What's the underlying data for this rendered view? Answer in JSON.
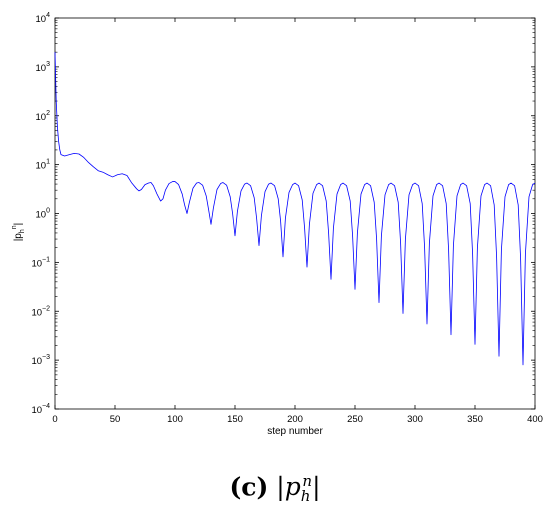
{
  "chart_data": {
    "type": "line",
    "title": "",
    "xlabel": "step  number",
    "ylabel_base": "|p",
    "ylabel_sub": "h",
    "ylabel_sup": "n",
    "ylabel_close": "|",
    "xlim": [
      0,
      400
    ],
    "ylim": [
      0.0001,
      10000
    ],
    "yscale": "log",
    "grid": false,
    "line_color": "#0000ff",
    "x_ticks": [
      0,
      50,
      100,
      150,
      200,
      250,
      300,
      350,
      400
    ],
    "y_ticks": [
      {
        "value": 10000,
        "mantissa": "10",
        "exp": "4"
      },
      {
        "value": 1000,
        "mantissa": "10",
        "exp": "3"
      },
      {
        "value": 100,
        "mantissa": "10",
        "exp": "2"
      },
      {
        "value": 10,
        "mantissa": "10",
        "exp": "1"
      },
      {
        "value": 1,
        "mantissa": "10",
        "exp": "0"
      },
      {
        "value": 0.1,
        "mantissa": "10",
        "exp": "−1"
      },
      {
        "value": 0.01,
        "mantissa": "10",
        "exp": "−2"
      },
      {
        "value": 0.001,
        "mantissa": "10",
        "exp": "−3"
      },
      {
        "value": 0.0001,
        "mantissa": "10",
        "exp": "−4"
      }
    ],
    "series": [
      {
        "values_description_free": true,
        "x": [
          0,
          1,
          2,
          3,
          4,
          5,
          8,
          12,
          16,
          20,
          24,
          28,
          32,
          36,
          40,
          44,
          48,
          52,
          56,
          60,
          64,
          68,
          70,
          72,
          75,
          78,
          80,
          82,
          85,
          88,
          90,
          92,
          95,
          98,
          100,
          103,
          106,
          108,
          110,
          112,
          115,
          118,
          120,
          123,
          126,
          128,
          130,
          132,
          135,
          138,
          140,
          143,
          146,
          148,
          150,
          152,
          155,
          158,
          160,
          163,
          166,
          168,
          170,
          172,
          175,
          178,
          180,
          183,
          186,
          188,
          190,
          192,
          195,
          198,
          200,
          203,
          206,
          208,
          210,
          212,
          215,
          218,
          220,
          223,
          226,
          228,
          230,
          232,
          235,
          238,
          240,
          243,
          246,
          248,
          250,
          252,
          255,
          258,
          260,
          263,
          266,
          268,
          270,
          272,
          275,
          278,
          280,
          283,
          286,
          288,
          290,
          292,
          295,
          298,
          300,
          303,
          306,
          308,
          310,
          312,
          315,
          318,
          320,
          323,
          326,
          328,
          330,
          332,
          335,
          338,
          340,
          343,
          346,
          348,
          350,
          352,
          355,
          358,
          360,
          363,
          366,
          368,
          370,
          372,
          375,
          378,
          380,
          383,
          386,
          388,
          390,
          392,
          395,
          398,
          400
        ],
        "y": [
          2000,
          200,
          60,
          30,
          20,
          16,
          15,
          16,
          17,
          16.5,
          14,
          11,
          9,
          7.5,
          7,
          6.2,
          5.6,
          6.2,
          6.5,
          6,
          4.2,
          3.2,
          2.9,
          3.1,
          3.9,
          4.2,
          4.3,
          3.7,
          2.5,
          1.8,
          2.0,
          3.0,
          4.1,
          4.5,
          4.5,
          3.9,
          2.5,
          1.5,
          1.0,
          1.7,
          3.3,
          4.2,
          4.3,
          3.8,
          2.3,
          1.2,
          0.6,
          1.3,
          3.1,
          4.1,
          4.3,
          3.8,
          2.2,
          1.0,
          0.35,
          1.1,
          2.9,
          4.0,
          4.2,
          3.7,
          2.1,
          0.8,
          0.22,
          0.9,
          2.8,
          4.0,
          4.2,
          3.7,
          2.0,
          0.7,
          0.13,
          0.8,
          2.7,
          3.9,
          4.2,
          3.7,
          1.9,
          0.5,
          0.08,
          0.6,
          2.6,
          3.9,
          4.2,
          3.7,
          1.8,
          0.4,
          0.045,
          0.5,
          2.5,
          3.9,
          4.2,
          3.7,
          1.8,
          0.35,
          0.028,
          0.4,
          2.5,
          3.9,
          4.2,
          3.7,
          1.7,
          0.3,
          0.015,
          0.35,
          2.4,
          3.9,
          4.2,
          3.7,
          1.7,
          0.25,
          0.009,
          0.3,
          2.4,
          3.9,
          4.2,
          3.7,
          1.6,
          0.2,
          0.0055,
          0.25,
          2.3,
          3.9,
          4.2,
          3.7,
          1.6,
          0.18,
          0.0033,
          0.22,
          2.3,
          3.9,
          4.2,
          3.7,
          1.6,
          0.15,
          0.0021,
          0.2,
          2.3,
          3.9,
          4.2,
          3.7,
          1.5,
          0.13,
          0.0012,
          0.18,
          2.2,
          3.9,
          4.2,
          3.7,
          1.5,
          0.12,
          0.0008,
          0.15,
          2.2,
          3.9,
          4.2
        ]
      }
    ]
  },
  "caption": {
    "label": "(c)",
    "bar_open": "|",
    "var": "p",
    "sub": "h",
    "sup": "n",
    "bar_close": "|"
  }
}
